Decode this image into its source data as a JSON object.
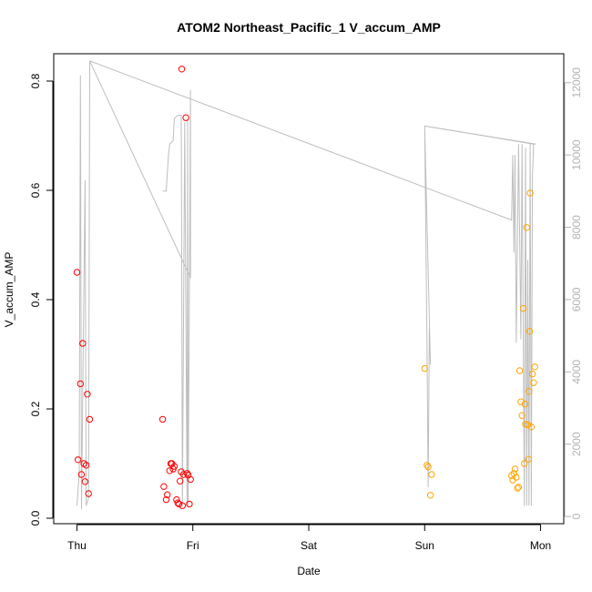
{
  "chart_data": {
    "type": "scatter",
    "title": "ATOM2 Northeast_Pacific_1 V_accum_AMP",
    "xlabel": "Date",
    "ylabel": "V_accum_AMP",
    "x_ticks": [
      "Thu",
      "Fri",
      "Sat",
      "Sun",
      "Mon"
    ],
    "xlim": [
      -0.2,
      4.2
    ],
    "ylim": [
      -0.01,
      0.85
    ],
    "y_ticks": [
      0.0,
      0.2,
      0.4,
      0.6,
      0.8
    ],
    "y_tick_labels": [
      "0.0",
      "0.2",
      "0.4",
      "0.6",
      "0.8"
    ],
    "y2lim": [
      -200,
      12800
    ],
    "y2_ticks": [
      0,
      2000,
      4000,
      6000,
      8000,
      10000,
      12000
    ],
    "y2_tick_labels": [
      "0",
      "2000",
      "4000",
      "6000",
      "8000",
      "10000",
      "12000"
    ],
    "colors": {
      "red": "#ff0000",
      "orange": "#ffa500",
      "line": "#bebebe",
      "axis": "#000000",
      "right_axis": "#b3b3b3"
    },
    "series": [
      {
        "color": "red",
        "points": [
          {
            "x": 0.0,
            "y": 0.45
          },
          {
            "x": 0.01,
            "y": 0.107
          },
          {
            "x": 0.03,
            "y": 0.246
          },
          {
            "x": 0.04,
            "y": 0.08
          },
          {
            "x": 0.05,
            "y": 0.32
          },
          {
            "x": 0.06,
            "y": 0.1
          },
          {
            "x": 0.07,
            "y": 0.067
          },
          {
            "x": 0.08,
            "y": 0.097
          },
          {
            "x": 0.09,
            "y": 0.227
          },
          {
            "x": 0.1,
            "y": 0.045
          },
          {
            "x": 0.11,
            "y": 0.181
          },
          {
            "x": 0.74,
            "y": 0.181
          },
          {
            "x": 0.75,
            "y": 0.058
          },
          {
            "x": 0.77,
            "y": 0.034
          },
          {
            "x": 0.78,
            "y": 0.043
          },
          {
            "x": 0.8,
            "y": 0.087
          },
          {
            "x": 0.81,
            "y": 0.1
          },
          {
            "x": 0.82,
            "y": 0.1
          },
          {
            "x": 0.83,
            "y": 0.09
          },
          {
            "x": 0.84,
            "y": 0.095
          },
          {
            "x": 0.86,
            "y": 0.034
          },
          {
            "x": 0.87,
            "y": 0.028
          },
          {
            "x": 0.88,
            "y": 0.026
          },
          {
            "x": 0.89,
            "y": 0.068
          },
          {
            "x": 0.9,
            "y": 0.085
          },
          {
            "x": 0.905,
            "y": 0.822
          },
          {
            "x": 0.91,
            "y": 0.023
          },
          {
            "x": 0.92,
            "y": 0.08
          },
          {
            "x": 0.94,
            "y": 0.733
          },
          {
            "x": 0.95,
            "y": 0.082
          },
          {
            "x": 0.96,
            "y": 0.079
          },
          {
            "x": 0.97,
            "y": 0.026
          },
          {
            "x": 0.98,
            "y": 0.071
          }
        ]
      },
      {
        "color": "orange",
        "points": [
          {
            "x": 3.0,
            "y": 0.274
          },
          {
            "x": 3.02,
            "y": 0.097
          },
          {
            "x": 3.03,
            "y": 0.094
          },
          {
            "x": 3.05,
            "y": 0.042
          },
          {
            "x": 3.06,
            "y": 0.08
          },
          {
            "x": 3.75,
            "y": 0.078
          },
          {
            "x": 3.76,
            "y": 0.07
          },
          {
            "x": 3.77,
            "y": 0.082
          },
          {
            "x": 3.78,
            "y": 0.09
          },
          {
            "x": 3.79,
            "y": 0.075
          },
          {
            "x": 3.8,
            "y": 0.055
          },
          {
            "x": 3.81,
            "y": 0.057
          },
          {
            "x": 3.82,
            "y": 0.27
          },
          {
            "x": 3.83,
            "y": 0.213
          },
          {
            "x": 3.84,
            "y": 0.188
          },
          {
            "x": 3.85,
            "y": 0.384
          },
          {
            "x": 3.86,
            "y": 0.1
          },
          {
            "x": 3.865,
            "y": 0.209
          },
          {
            "x": 3.87,
            "y": 0.172
          },
          {
            "x": 3.88,
            "y": 0.532
          },
          {
            "x": 3.89,
            "y": 0.171
          },
          {
            "x": 3.895,
            "y": 0.108
          },
          {
            "x": 3.9,
            "y": 0.232
          },
          {
            "x": 3.905,
            "y": 0.342
          },
          {
            "x": 3.91,
            "y": 0.595
          },
          {
            "x": 3.92,
            "y": 0.167
          },
          {
            "x": 3.93,
            "y": 0.264
          },
          {
            "x": 3.94,
            "y": 0.248
          },
          {
            "x": 3.95,
            "y": 0.277
          }
        ]
      }
    ],
    "line_series": {
      "axis": "right",
      "color": "line",
      "points": [
        {
          "x": 0.0,
          "y": 300
        },
        {
          "x": 0.02,
          "y": 1200
        },
        {
          "x": 0.03,
          "y": 12200
        },
        {
          "x": 0.04,
          "y": 200
        },
        {
          "x": 0.07,
          "y": 9300
        },
        {
          "x": 0.08,
          "y": 300
        },
        {
          "x": 0.1,
          "y": 500
        },
        {
          "x": 0.11,
          "y": 12600
        },
        {
          "x": 0.98,
          "y": 6600
        },
        {
          "x": 0.98,
          "y": 11800
        },
        {
          "x": 0.96,
          "y": 300
        },
        {
          "x": 0.955,
          "y": 11000
        },
        {
          "x": 0.95,
          "y": 300
        },
        {
          "x": 0.93,
          "y": 10900
        },
        {
          "x": 0.91,
          "y": 300
        },
        {
          "x": 0.9,
          "y": 11100
        },
        {
          "x": 0.87,
          "y": 11100
        },
        {
          "x": 0.84,
          "y": 11000
        },
        {
          "x": 0.83,
          "y": 10400
        },
        {
          "x": 0.8,
          "y": 10300
        },
        {
          "x": 0.79,
          "y": 10000
        },
        {
          "x": 0.78,
          "y": 9500
        },
        {
          "x": 0.77,
          "y": 9000
        },
        {
          "x": 0.74,
          "y": 9000
        }
      ],
      "points_right": [
        {
          "x": 0.11,
          "y": 12600
        },
        {
          "x": 3.75,
          "y": 8200
        },
        {
          "x": 3.76,
          "y": 10000
        },
        {
          "x": 3.77,
          "y": 7300
        },
        {
          "x": 3.78,
          "y": 10000
        },
        {
          "x": 3.79,
          "y": 4800
        },
        {
          "x": 3.81,
          "y": 10300
        },
        {
          "x": 3.83,
          "y": 4900
        },
        {
          "x": 3.84,
          "y": 10300
        },
        {
          "x": 3.86,
          "y": 300
        },
        {
          "x": 3.87,
          "y": 10200
        },
        {
          "x": 3.88,
          "y": 300
        },
        {
          "x": 3.89,
          "y": 7100
        },
        {
          "x": 3.9,
          "y": 300
        },
        {
          "x": 3.91,
          "y": 10300
        },
        {
          "x": 3.92,
          "y": 300
        },
        {
          "x": 3.93,
          "y": 9400
        },
        {
          "x": 3.94,
          "y": 10300
        },
        {
          "x": 3.0,
          "y": 10800
        },
        {
          "x": 3.02,
          "y": 4800
        },
        {
          "x": 3.03,
          "y": 800
        },
        {
          "x": 3.04,
          "y": 5200
        },
        {
          "x": 3.05,
          "y": 4200
        },
        {
          "x": 3.0,
          "y": 10800
        },
        {
          "x": 3.96,
          "y": 10300
        }
      ]
    },
    "grid": false,
    "legend": "none"
  }
}
